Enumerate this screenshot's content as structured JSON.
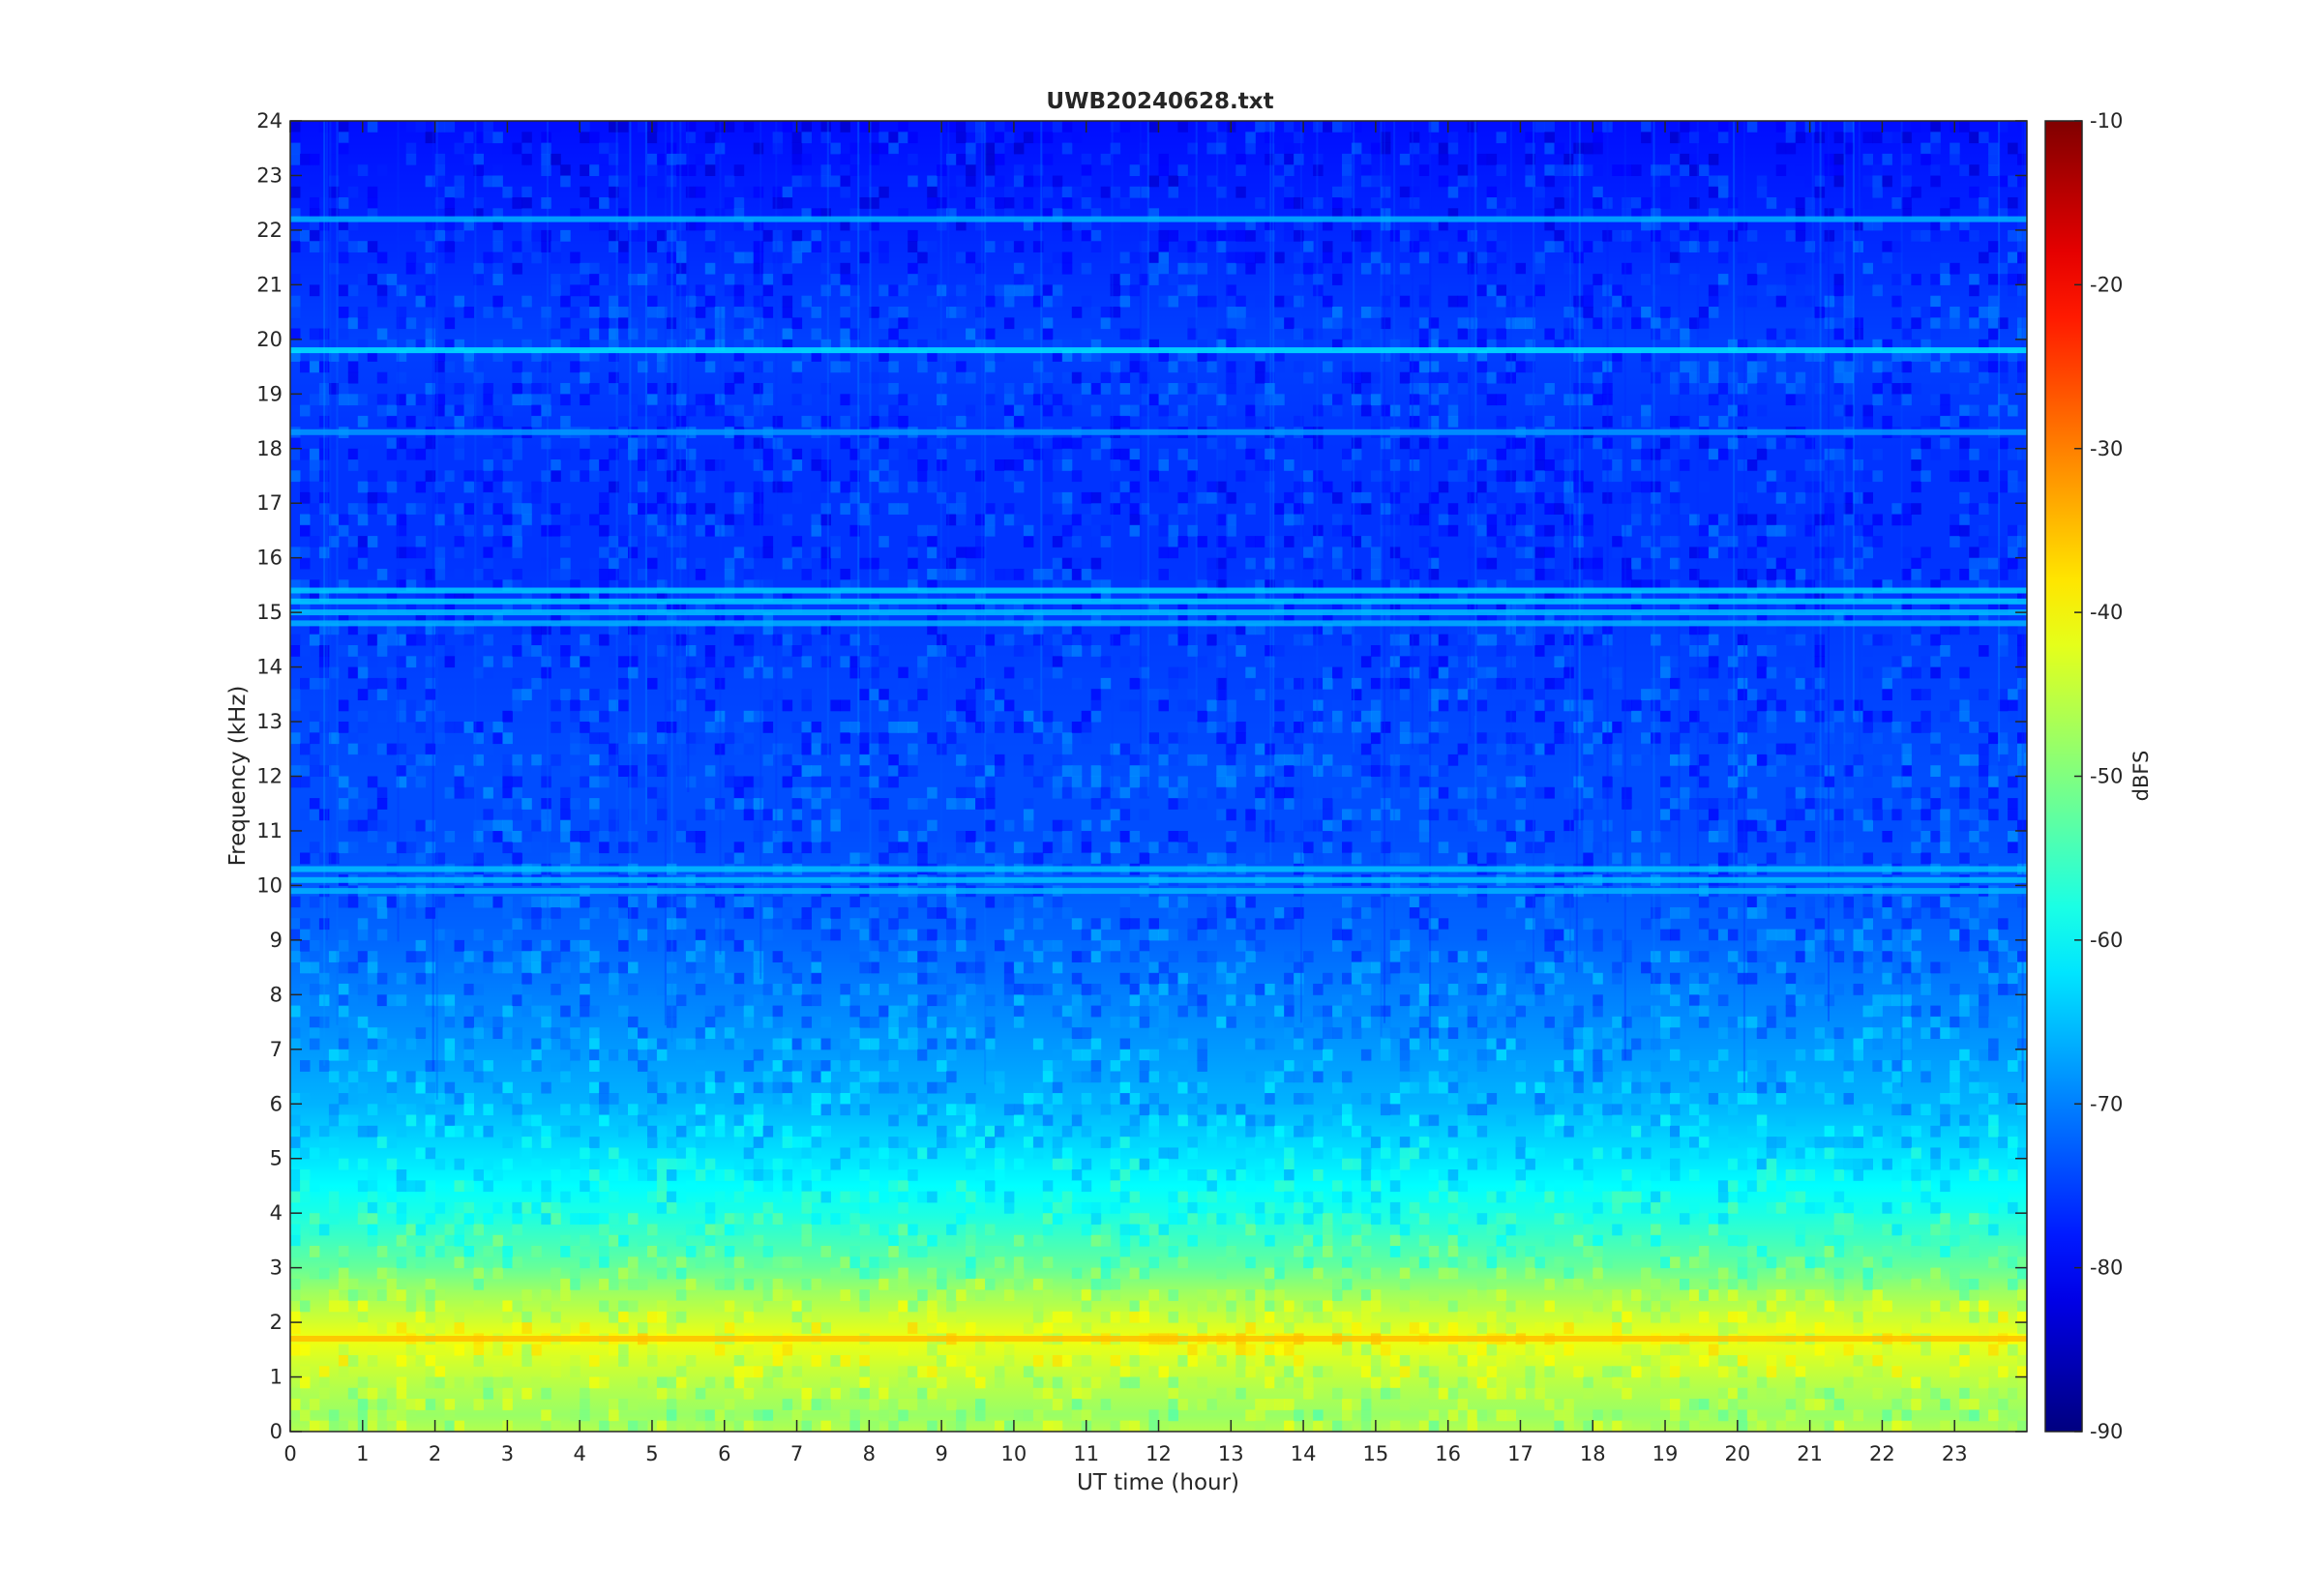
{
  "chart_data": {
    "type": "heatmap",
    "title": "UWB20240628.txt",
    "xlabel": "UT time (hour)",
    "ylabel": "Frequency (kHz)",
    "colorbar_label": "dBFS",
    "xlim": [
      0,
      24
    ],
    "ylim": [
      0,
      24
    ],
    "clim": [
      -90,
      -10
    ],
    "colormap": "jet",
    "x_ticks": [
      "0",
      "1",
      "2",
      "3",
      "4",
      "5",
      "6",
      "7",
      "8",
      "9",
      "10",
      "11",
      "12",
      "13",
      "14",
      "15",
      "16",
      "17",
      "18",
      "19",
      "20",
      "21",
      "22",
      "23"
    ],
    "y_ticks": [
      "0",
      "1",
      "2",
      "3",
      "4",
      "5",
      "6",
      "7",
      "8",
      "9",
      "10",
      "11",
      "12",
      "13",
      "14",
      "15",
      "16",
      "17",
      "18",
      "19",
      "20",
      "21",
      "22",
      "23",
      "24"
    ],
    "colorbar_ticks": [
      "-10",
      "-20",
      "-30",
      "-40",
      "-50",
      "-60",
      "-70",
      "-80",
      "-90"
    ],
    "colorbar_tick_values": [
      -10,
      -20,
      -30,
      -40,
      -50,
      -60,
      -70,
      -80,
      -90
    ],
    "spectral_profile": {
      "freq_khz": [
        0,
        0.3,
        0.8,
        1.2,
        1.7,
        2.2,
        2.6,
        3.0,
        3.5,
        4.0,
        4.5,
        5.0,
        5.5,
        6.0,
        7.0,
        8.0,
        9.0,
        10.0,
        11.0,
        12.0,
        14.0,
        16.0,
        18.0,
        20.0,
        22.0,
        24.0
      ],
      "level_dbfs": [
        -46,
        -48,
        -46,
        -44,
        -41,
        -45,
        -48,
        -52,
        -55,
        -58,
        -60,
        -62,
        -64,
        -66,
        -68,
        -70,
        -72,
        -73,
        -74,
        -74,
        -75,
        -76,
        -76,
        -75,
        -77,
        -79
      ]
    },
    "persistent_lines_khz": [
      {
        "freq": 19.8,
        "level": -62
      },
      {
        "freq": 22.2,
        "level": -66
      },
      {
        "freq": 15.4,
        "level": -64
      },
      {
        "freq": 15.2,
        "level": -64
      },
      {
        "freq": 15.0,
        "level": -65
      },
      {
        "freq": 14.8,
        "level": -66
      },
      {
        "freq": 10.3,
        "level": -65
      },
      {
        "freq": 10.1,
        "level": -65
      },
      {
        "freq": 9.9,
        "level": -66
      },
      {
        "freq": 18.3,
        "level": -68
      },
      {
        "freq": 1.7,
        "level": -35
      }
    ],
    "grid": false
  }
}
